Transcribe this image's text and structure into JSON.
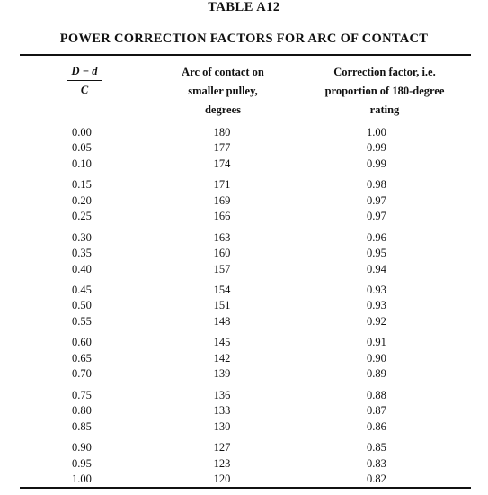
{
  "table": {
    "number": "TABLE A12",
    "title": "POWER CORRECTION FACTORS FOR ARC OF CONTACT",
    "headers": {
      "col1_numerator": "D − d",
      "col1_denominator": "C",
      "col2_line1": "Arc of contact on",
      "col2_line2": "smaller pulley,",
      "col2_line3": "degrees",
      "col3_line1": "Correction factor, i.e.",
      "col3_line2": "proportion of 180-degree",
      "col3_line3": "rating"
    },
    "groups": [
      [
        {
          "ratio": "0.00",
          "arc": "180",
          "factor": "1.00"
        },
        {
          "ratio": "0.05",
          "arc": "177",
          "factor": "0.99"
        },
        {
          "ratio": "0.10",
          "arc": "174",
          "factor": "0.99"
        }
      ],
      [
        {
          "ratio": "0.15",
          "arc": "171",
          "factor": "0.98"
        },
        {
          "ratio": "0.20",
          "arc": "169",
          "factor": "0.97"
        },
        {
          "ratio": "0.25",
          "arc": "166",
          "factor": "0.97"
        }
      ],
      [
        {
          "ratio": "0.30",
          "arc": "163",
          "factor": "0.96"
        },
        {
          "ratio": "0.35",
          "arc": "160",
          "factor": "0.95"
        },
        {
          "ratio": "0.40",
          "arc": "157",
          "factor": "0.94"
        }
      ],
      [
        {
          "ratio": "0.45",
          "arc": "154",
          "factor": "0.93"
        },
        {
          "ratio": "0.50",
          "arc": "151",
          "factor": "0.93"
        },
        {
          "ratio": "0.55",
          "arc": "148",
          "factor": "0.92"
        }
      ],
      [
        {
          "ratio": "0.60",
          "arc": "145",
          "factor": "0.91"
        },
        {
          "ratio": "0.65",
          "arc": "142",
          "factor": "0.90"
        },
        {
          "ratio": "0.70",
          "arc": "139",
          "factor": "0.89"
        }
      ],
      [
        {
          "ratio": "0.75",
          "arc": "136",
          "factor": "0.88"
        },
        {
          "ratio": "0.80",
          "arc": "133",
          "factor": "0.87"
        },
        {
          "ratio": "0.85",
          "arc": "130",
          "factor": "0.86"
        }
      ],
      [
        {
          "ratio": "0.90",
          "arc": "127",
          "factor": "0.85"
        },
        {
          "ratio": "0.95",
          "arc": "123",
          "factor": "0.83"
        },
        {
          "ratio": "1.00",
          "arc": "120",
          "factor": "0.82"
        }
      ]
    ]
  }
}
